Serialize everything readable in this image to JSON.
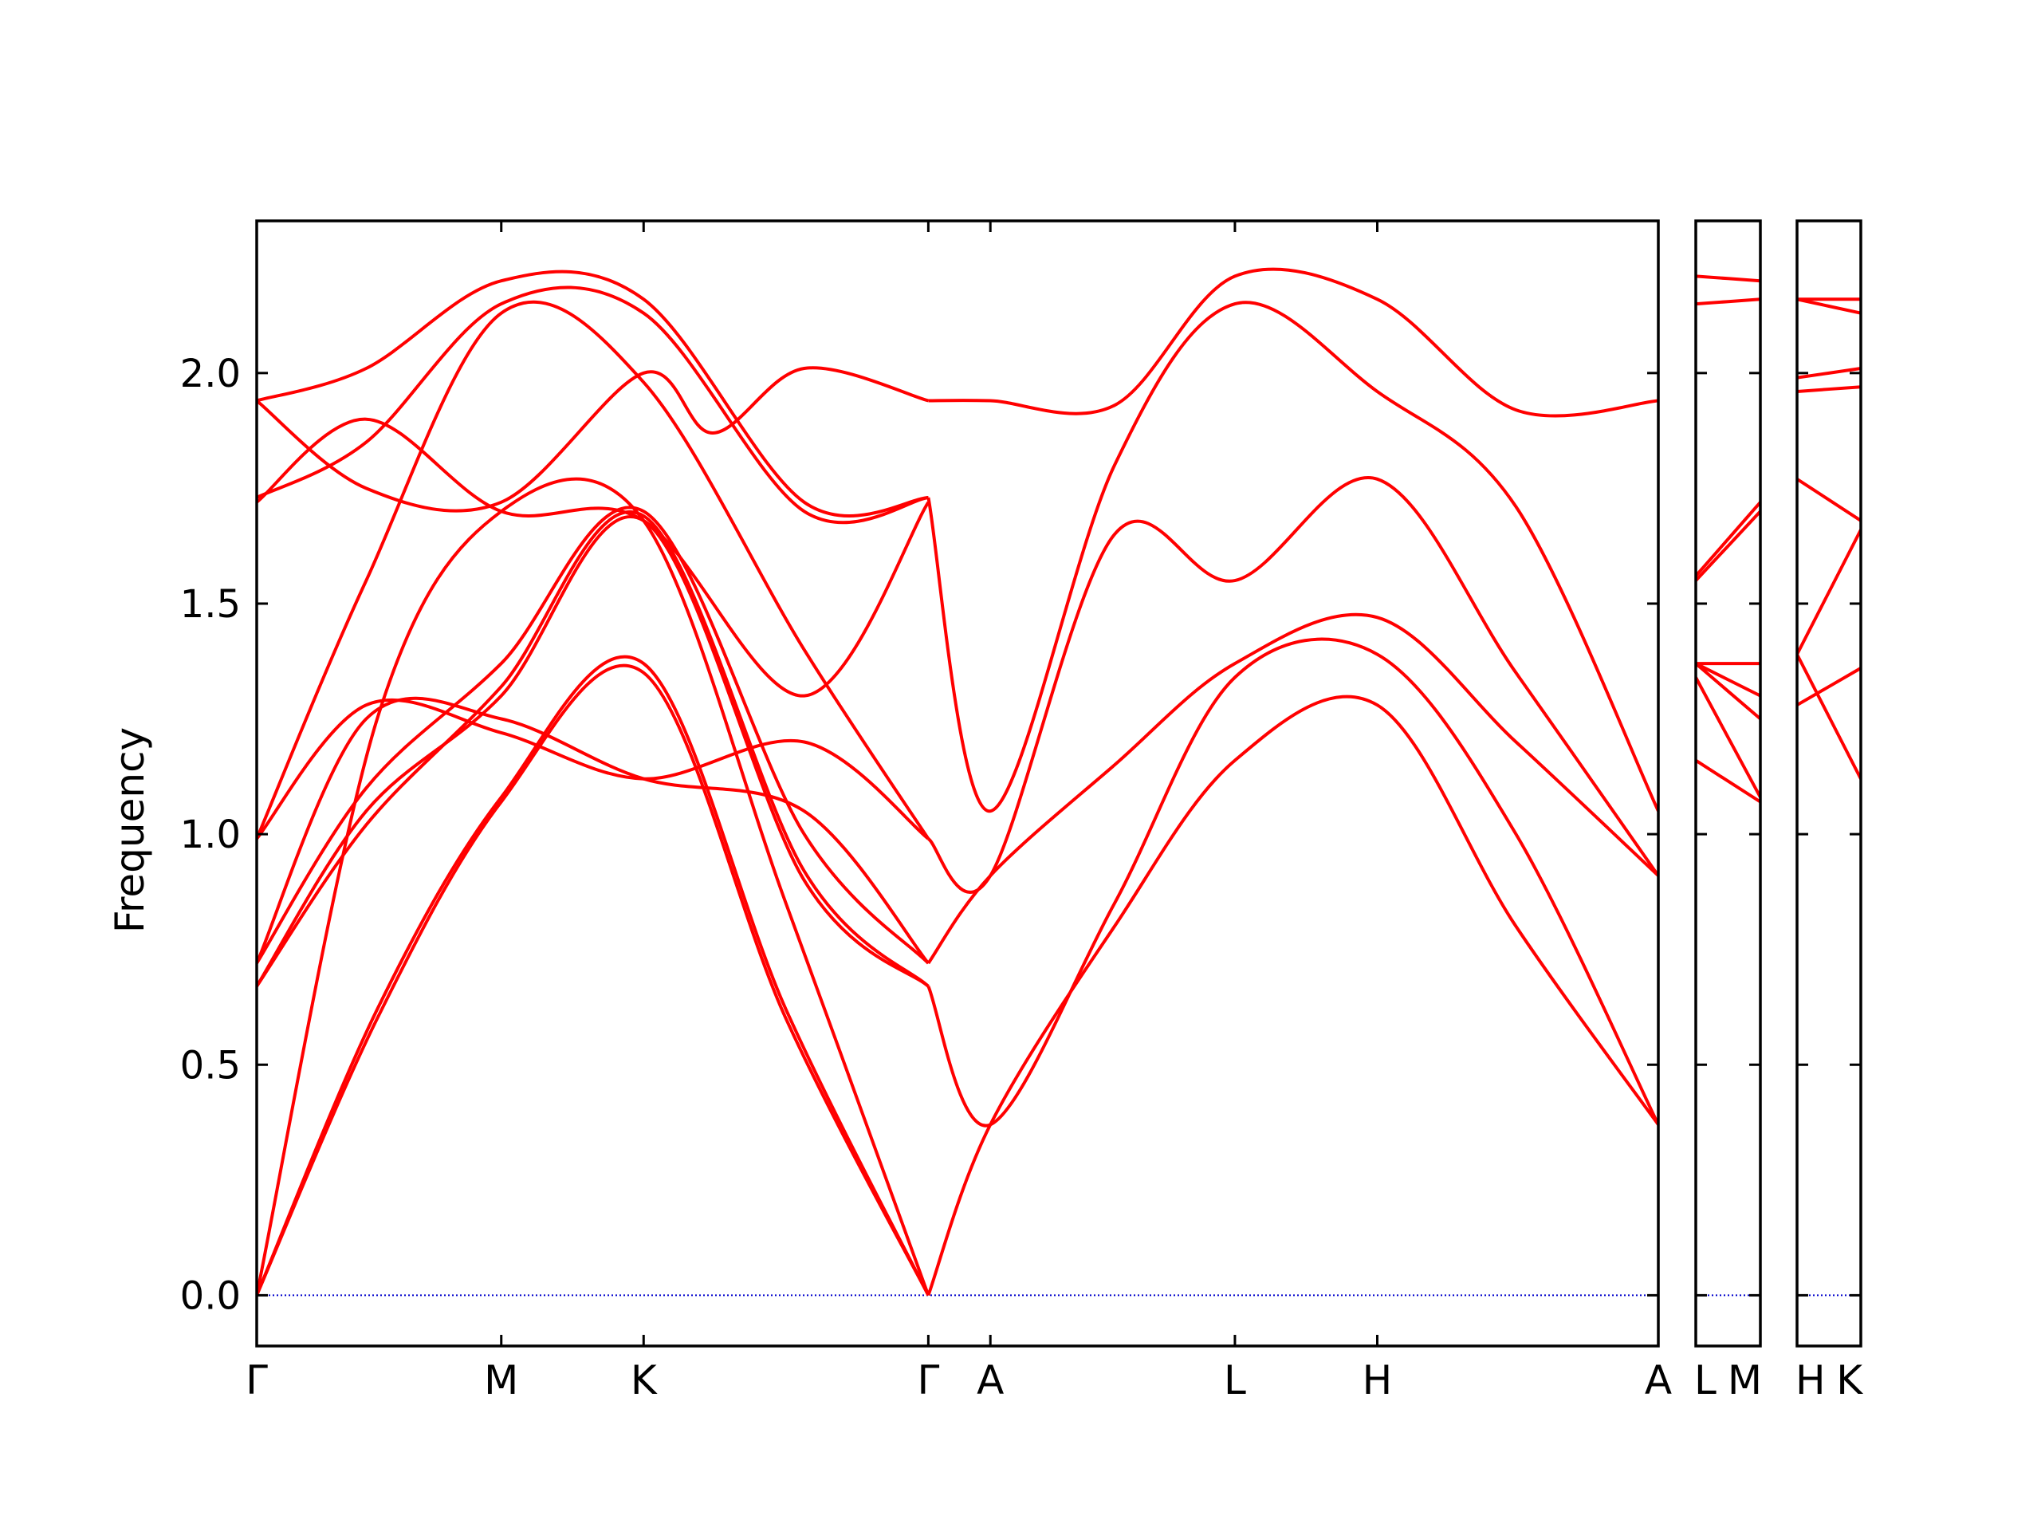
{
  "chart_data": {
    "type": "line",
    "title": "",
    "ylabel": "Frequency",
    "xlabel": "",
    "ylim": [
      -0.11,
      2.33
    ],
    "yticks": [
      0.0,
      0.5,
      1.0,
      1.5,
      2.0
    ],
    "ytick_labels": [
      "0.0",
      "0.5",
      "1.0",
      "1.5",
      "2.0"
    ],
    "panels": [
      {
        "xlim": [
          0,
          3.84
        ],
        "ticks": [
          {
            "x": 0.0,
            "label": "Γ"
          },
          {
            "x": 0.67,
            "label": "M"
          },
          {
            "x": 1.06,
            "label": "K"
          },
          {
            "x": 1.84,
            "label": "Γ"
          },
          {
            "x": 2.01,
            "label": "A"
          },
          {
            "x": 2.68,
            "label": "L"
          },
          {
            "x": 3.07,
            "label": "H"
          },
          {
            "x": 3.84,
            "label": "A"
          }
        ]
      },
      {
        "xlim": [
          0,
          0.17
        ],
        "ticks": [
          {
            "x": 0.0,
            "label": "L"
          },
          {
            "x": 0.17,
            "label": "M"
          }
        ]
      },
      {
        "xlim": [
          0,
          0.17
        ],
        "ticks": [
          {
            "x": 0.0,
            "label": "H"
          },
          {
            "x": 0.17,
            "label": "K"
          }
        ]
      }
    ],
    "line_color": "#ff0000",
    "zero_line_color": "#0000cc",
    "series": [
      {
        "panel": 0,
        "x": [
          0,
          0.33,
          0.67,
          1.06,
          1.45,
          1.84
        ],
        "y": [
          0.0,
          0.6,
          1.07,
          1.35,
          0.6,
          0.0
        ]
      },
      {
        "panel": 0,
        "x": [
          0,
          0.33,
          0.67,
          1.06,
          1.45,
          1.84
        ],
        "y": [
          0.0,
          0.62,
          1.08,
          1.37,
          0.62,
          0.0
        ]
      },
      {
        "panel": 0,
        "x": [
          0,
          0.33,
          0.67,
          1.06,
          1.45,
          1.84
        ],
        "y": [
          0.0,
          1.25,
          1.7,
          1.68,
          0.85,
          0.0
        ]
      },
      {
        "panel": 0,
        "x": [
          0,
          0.3,
          0.67,
          1.06,
          1.5,
          1.84
        ],
        "y": [
          0.67,
          1.05,
          1.3,
          1.68,
          0.9,
          0.67
        ]
      },
      {
        "panel": 0,
        "x": [
          0,
          0.3,
          0.67,
          1.06,
          1.5,
          1.84
        ],
        "y": [
          0.67,
          1.02,
          1.32,
          1.69,
          0.92,
          0.67
        ]
      },
      {
        "panel": 0,
        "x": [
          0,
          0.3,
          0.67,
          1.06,
          1.5,
          1.84
        ],
        "y": [
          0.72,
          1.1,
          1.37,
          1.7,
          1.0,
          0.72
        ]
      },
      {
        "panel": 0,
        "x": [
          0,
          0.3,
          0.67,
          1.06,
          1.5,
          1.84
        ],
        "y": [
          0.72,
          1.25,
          1.25,
          1.12,
          1.05,
          0.72
        ]
      },
      {
        "panel": 0,
        "x": [
          0,
          0.3,
          0.67,
          1.06,
          1.5,
          1.84
        ],
        "y": [
          0.99,
          1.28,
          1.22,
          1.12,
          1.2,
          0.99
        ]
      },
      {
        "panel": 0,
        "x": [
          0,
          0.3,
          0.67,
          1.06,
          1.5,
          1.84
        ],
        "y": [
          0.99,
          1.55,
          2.13,
          1.98,
          1.4,
          0.99
        ]
      },
      {
        "panel": 0,
        "x": [
          0,
          0.3,
          0.67,
          1.06,
          1.5,
          1.84
        ],
        "y": [
          1.72,
          1.9,
          1.7,
          1.68,
          1.3,
          1.72
        ]
      },
      {
        "panel": 0,
        "x": [
          0,
          0.3,
          0.67,
          1.06,
          1.5,
          1.84
        ],
        "y": [
          1.73,
          1.85,
          2.15,
          2.13,
          1.7,
          1.73
        ]
      },
      {
        "panel": 0,
        "x": [
          0,
          0.3,
          0.67,
          1.06,
          1.5,
          1.84
        ],
        "y": [
          1.94,
          2.01,
          2.2,
          2.16,
          1.72,
          1.73
        ]
      },
      {
        "panel": 0,
        "x": [
          0,
          0.3,
          0.67,
          1.06,
          1.25,
          1.5,
          1.84
        ],
        "y": [
          1.94,
          1.75,
          1.72,
          2.0,
          1.87,
          2.01,
          1.94
        ]
      },
      {
        "panel": 0,
        "x": [
          1.84,
          2.01,
          2.35,
          2.68,
          3.07,
          3.45,
          3.84
        ],
        "y": [
          0.0,
          0.37,
          0.8,
          1.16,
          1.28,
          0.8,
          0.37
        ]
      },
      {
        "panel": 0,
        "x": [
          1.84,
          2.01,
          2.35,
          2.68,
          3.07,
          3.45,
          3.84
        ],
        "y": [
          0.67,
          0.37,
          0.85,
          1.34,
          1.39,
          1.0,
          0.37
        ]
      },
      {
        "panel": 0,
        "x": [
          1.84,
          2.01,
          2.35,
          2.68,
          3.07,
          3.45,
          3.84
        ],
        "y": [
          0.72,
          0.91,
          1.15,
          1.37,
          1.47,
          1.2,
          0.91
        ]
      },
      {
        "panel": 0,
        "x": [
          1.84,
          2.01,
          2.35,
          2.68,
          3.07,
          3.45,
          3.84
        ],
        "y": [
          0.99,
          0.91,
          1.65,
          1.55,
          1.77,
          1.35,
          0.91
        ]
      },
      {
        "panel": 0,
        "x": [
          1.84,
          2.01,
          2.35,
          2.68,
          3.07,
          3.45,
          3.84
        ],
        "y": [
          1.73,
          1.05,
          1.8,
          2.15,
          1.96,
          1.71,
          1.05
        ]
      },
      {
        "panel": 0,
        "x": [
          1.84,
          2.01,
          2.35,
          2.68,
          3.07,
          3.45,
          3.84
        ],
        "y": [
          1.94,
          1.94,
          1.93,
          2.21,
          2.16,
          1.92,
          1.94
        ]
      },
      {
        "panel": 1,
        "x": [
          0,
          0.17
        ],
        "y": [
          1.16,
          1.07
        ]
      },
      {
        "panel": 1,
        "x": [
          0,
          0.17
        ],
        "y": [
          1.34,
          1.08
        ]
      },
      {
        "panel": 1,
        "x": [
          0,
          0.17
        ],
        "y": [
          1.37,
          1.25
        ]
      },
      {
        "panel": 1,
        "x": [
          0,
          0.17
        ],
        "y": [
          1.37,
          1.3
        ]
      },
      {
        "panel": 1,
        "x": [
          0,
          0.17
        ],
        "y": [
          1.37,
          1.37
        ]
      },
      {
        "panel": 1,
        "x": [
          0,
          0.17
        ],
        "y": [
          1.55,
          1.7
        ]
      },
      {
        "panel": 1,
        "x": [
          0,
          0.17
        ],
        "y": [
          1.56,
          1.72
        ]
      },
      {
        "panel": 1,
        "x": [
          0,
          0.17
        ],
        "y": [
          2.15,
          2.16
        ]
      },
      {
        "panel": 1,
        "x": [
          0,
          0.17
        ],
        "y": [
          2.21,
          2.2
        ]
      },
      {
        "panel": 2,
        "x": [
          0,
          0.17
        ],
        "y": [
          1.28,
          1.36
        ]
      },
      {
        "panel": 2,
        "x": [
          0,
          0.17
        ],
        "y": [
          1.39,
          1.12
        ]
      },
      {
        "panel": 2,
        "x": [
          0,
          0.17
        ],
        "y": [
          1.39,
          1.66
        ]
      },
      {
        "panel": 2,
        "x": [
          0,
          0.17
        ],
        "y": [
          1.77,
          1.68
        ]
      },
      {
        "panel": 2,
        "x": [
          0,
          0.17
        ],
        "y": [
          1.96,
          1.97
        ]
      },
      {
        "panel": 2,
        "x": [
          0,
          0.17
        ],
        "y": [
          1.99,
          2.01
        ]
      },
      {
        "panel": 2,
        "x": [
          0,
          0.17
        ],
        "y": [
          2.16,
          2.13
        ]
      },
      {
        "panel": 2,
        "x": [
          0,
          0.17
        ],
        "y": [
          2.16,
          2.16
        ]
      }
    ]
  }
}
